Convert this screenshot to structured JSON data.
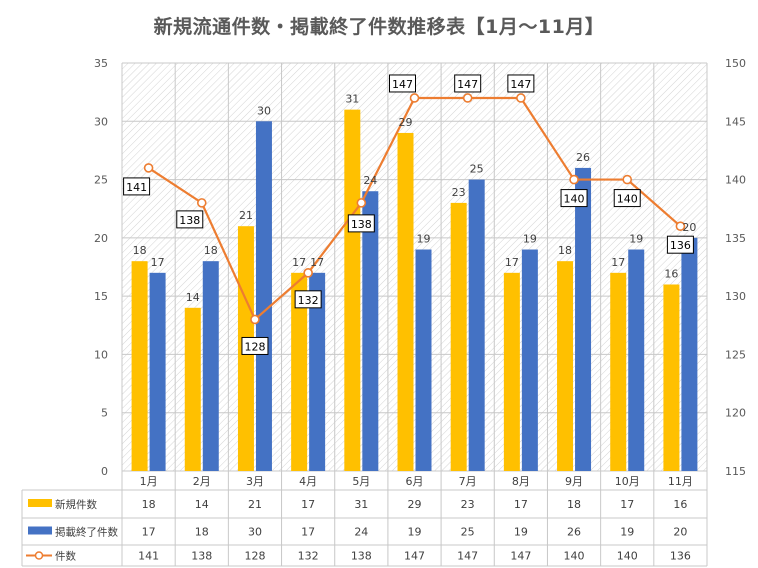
{
  "chart_data": {
    "type": "bar",
    "title": "新規流通件数・掲載終了件数推移表【1月～11月】",
    "categories": [
      "1月",
      "2月",
      "3月",
      "4月",
      "5月",
      "6月",
      "7月",
      "8月",
      "9月",
      "10月",
      "11月"
    ],
    "series": [
      {
        "name": "新規件数",
        "type": "bar",
        "axis": "left",
        "color": "#FFC000",
        "values": [
          18,
          14,
          21,
          17,
          31,
          29,
          23,
          17,
          18,
          17,
          16
        ]
      },
      {
        "name": "掲載終了件数",
        "type": "bar",
        "axis": "left",
        "color": "#4472C4",
        "values": [
          17,
          18,
          30,
          17,
          24,
          19,
          25,
          19,
          26,
          19,
          20
        ]
      },
      {
        "name": "件数",
        "type": "line",
        "axis": "right",
        "color": "#ED7D31",
        "values": [
          141,
          138,
          128,
          132,
          138,
          147,
          147,
          147,
          140,
          140,
          136
        ]
      }
    ],
    "y_left": {
      "min": 0,
      "max": 35,
      "step": 5,
      "ticks": [
        "0",
        "5",
        "10",
        "15",
        "20",
        "25",
        "30",
        "35"
      ]
    },
    "y_right": {
      "min": 115,
      "max": 150,
      "step": 5,
      "ticks": [
        "115",
        "120",
        "125",
        "130",
        "135",
        "140",
        "145",
        "150"
      ]
    },
    "grid": true,
    "legend": "data-table-bottom",
    "data_table": true
  }
}
